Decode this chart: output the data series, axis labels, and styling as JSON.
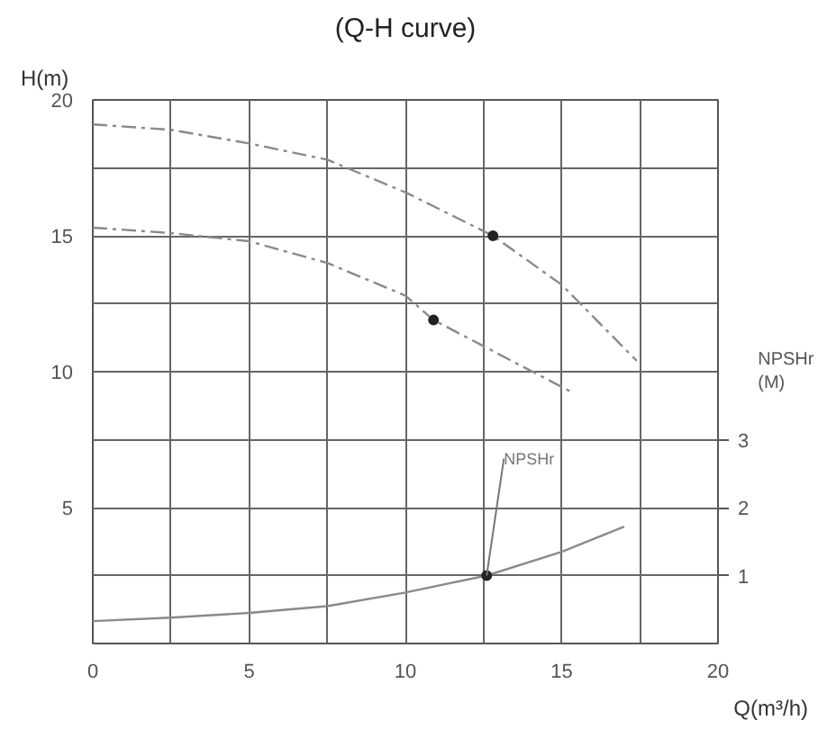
{
  "chart_data": {
    "type": "line",
    "title": "(Q-H curve)",
    "xlabel": "Q(m³/h)",
    "ylabel": "H(m)",
    "y2label": "NPSHr\n(M)",
    "x": [
      0,
      2.5,
      5,
      7.5,
      10,
      12.8,
      15,
      17.4
    ],
    "series": [
      {
        "color": "#8a8a8a",
        "line_style": "dashed",
        "values": [
          19.1,
          18.9,
          18.4,
          17.8,
          16.6,
          15.0,
          13.2,
          10.4
        ]
      },
      {
        "color": "#8a8a8a",
        "line_style": "dashed",
        "x": [
          0,
          2.5,
          5,
          7.5,
          10,
          10.9,
          15.4
        ],
        "values": [
          15.3,
          15.1,
          14.8,
          14.0,
          12.8,
          11.9,
          9.2
        ]
      },
      {
        "color": "#8a8a8a",
        "line_style": "solid",
        "axis": "y2",
        "x": [
          0,
          2.5,
          5,
          7.5,
          10,
          12.6,
          15,
          17
        ],
        "values": [
          0.33,
          0.38,
          0.45,
          0.55,
          0.75,
          1.0,
          1.35,
          1.72
        ]
      },
      {
        "type": "scatter",
        "color": "#222222",
        "marker": "circle",
        "x": [
          12.8,
          10.9
        ],
        "values": [
          15.0,
          11.9
        ]
      },
      {
        "type": "scatter",
        "color": "#222222",
        "marker": "circle",
        "axis": "y2",
        "x": [
          12.6
        ],
        "values": [
          1.0
        ]
      }
    ],
    "annotations": [
      {
        "text": "NPSHr",
        "x": 12.6,
        "y": 2.5
      }
    ],
    "xlim": [
      0,
      20
    ],
    "ylim": [
      0,
      20
    ],
    "y2lim": [
      0,
      8
    ],
    "xticks": [
      0,
      {
        "value": 2.5,
        "label": null
      },
      5,
      {
        "value": 7.5,
        "label": null
      },
      10,
      {
        "value": 12.5,
        "label": null
      },
      15,
      {
        "value": 17.5,
        "label": null
      },
      20
    ],
    "yticks": [
      {
        "value": 0,
        "label": null
      },
      {
        "value": 2.5,
        "label": null
      },
      5,
      {
        "value": 7.5,
        "label": null
      },
      10,
      {
        "value": 12.5,
        "label": null
      },
      15,
      {
        "value": 17.5,
        "label": null
      },
      20
    ],
    "y2ticks": [
      1,
      2,
      3
    ],
    "grid": true
  }
}
